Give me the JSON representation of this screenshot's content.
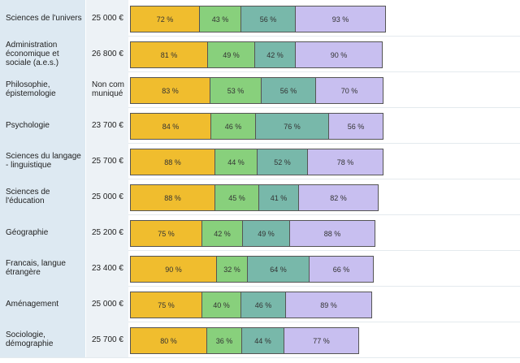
{
  "colors": {
    "indicator_1": "#f0bd2e",
    "indicator_2": "#88d07c",
    "indicator_3": "#78b8aa",
    "indicator_4": "#c8bff0"
  },
  "chart_data": {
    "type": "bar",
    "orientation": "horizontal",
    "stacked": true,
    "categories": [
      "Sciences de l'univers",
      "Administration économique et sociale (a.e.s.)",
      "Philosophie, épistemologie",
      "Psychologie",
      "Sciences du langage - linguistique",
      "Sciences de l'éducation",
      "Géographie",
      "Francais, langue étrangère",
      "Aménagement",
      "Sociologie, démographie"
    ],
    "salaries": [
      "25 000 €",
      "26 800 €",
      "Non com muniqué",
      "23 700 €",
      "25 700 €",
      "25 000 €",
      "25 200 €",
      "23 400 €",
      "25 000 €",
      "25 700 €"
    ],
    "series": [
      {
        "values": [
          72,
          81,
          83,
          84,
          88,
          88,
          75,
          90,
          75,
          80
        ]
      },
      {
        "values": [
          43,
          49,
          53,
          46,
          44,
          45,
          42,
          32,
          40,
          36
        ]
      },
      {
        "values": [
          56,
          42,
          56,
          76,
          52,
          41,
          49,
          64,
          46,
          44
        ]
      },
      {
        "values": [
          93,
          90,
          70,
          56,
          78,
          82,
          88,
          66,
          89,
          77
        ]
      }
    ],
    "value_suffix": " %",
    "grid": false,
    "legend": "none"
  }
}
